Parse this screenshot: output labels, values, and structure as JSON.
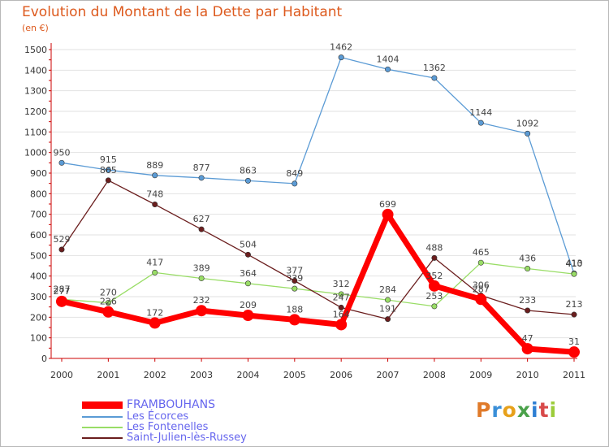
{
  "header": {
    "title": "Evolution du Montant de la Dette par Habitant",
    "subtitle": "(en €)"
  },
  "logo": {
    "text": "Proxiti",
    "letters": [
      "P",
      "r",
      "o",
      "x",
      "i",
      "t",
      "i"
    ]
  },
  "colors": {
    "title": "#dd5a1e",
    "axis": "#cc0000",
    "grid": "#e2e2e2",
    "frambouhans": "#ff0000",
    "les_ecorces": "#5b9bd5",
    "les_fontenelles": "#99dd66",
    "saint_julien": "#6b1e1e"
  },
  "chart_data": {
    "type": "line",
    "title": "Evolution du Montant de la Dette par Habitant",
    "subtitle": "(en €)",
    "x": [
      "2000",
      "2001",
      "2002",
      "2003",
      "2004",
      "2005",
      "2006",
      "2007",
      "2008",
      "2009",
      "2010",
      "2011"
    ],
    "ylim": [
      0,
      1500
    ],
    "yticks": [
      0,
      100,
      200,
      300,
      400,
      500,
      600,
      700,
      800,
      900,
      1000,
      1100,
      1200,
      1300,
      1400,
      1500
    ],
    "grid": true,
    "legend_position": "bottom-left",
    "series": [
      {
        "name": "FRAMBOUHANS",
        "color": "#ff0000",
        "values": [
          277,
          226,
          172,
          232,
          209,
          188,
          164,
          699,
          352,
          287,
          47,
          31
        ]
      },
      {
        "name": "Les Écorces",
        "color": "#5b9bd5",
        "values": [
          950,
          915,
          889,
          877,
          863,
          849,
          1462,
          1404,
          1362,
          1144,
          1092,
          413
        ]
      },
      {
        "name": "Les Fontenelles",
        "color": "#99dd66",
        "values": [
          287,
          270,
          417,
          389,
          364,
          339,
          312,
          284,
          253,
          465,
          436,
          410
        ]
      },
      {
        "name": "Saint-Julien-lès-Russey",
        "color": "#6b1e1e",
        "values": [
          529,
          865,
          748,
          627,
          504,
          377,
          247,
          191,
          488,
          306,
          233,
          213
        ]
      }
    ]
  }
}
